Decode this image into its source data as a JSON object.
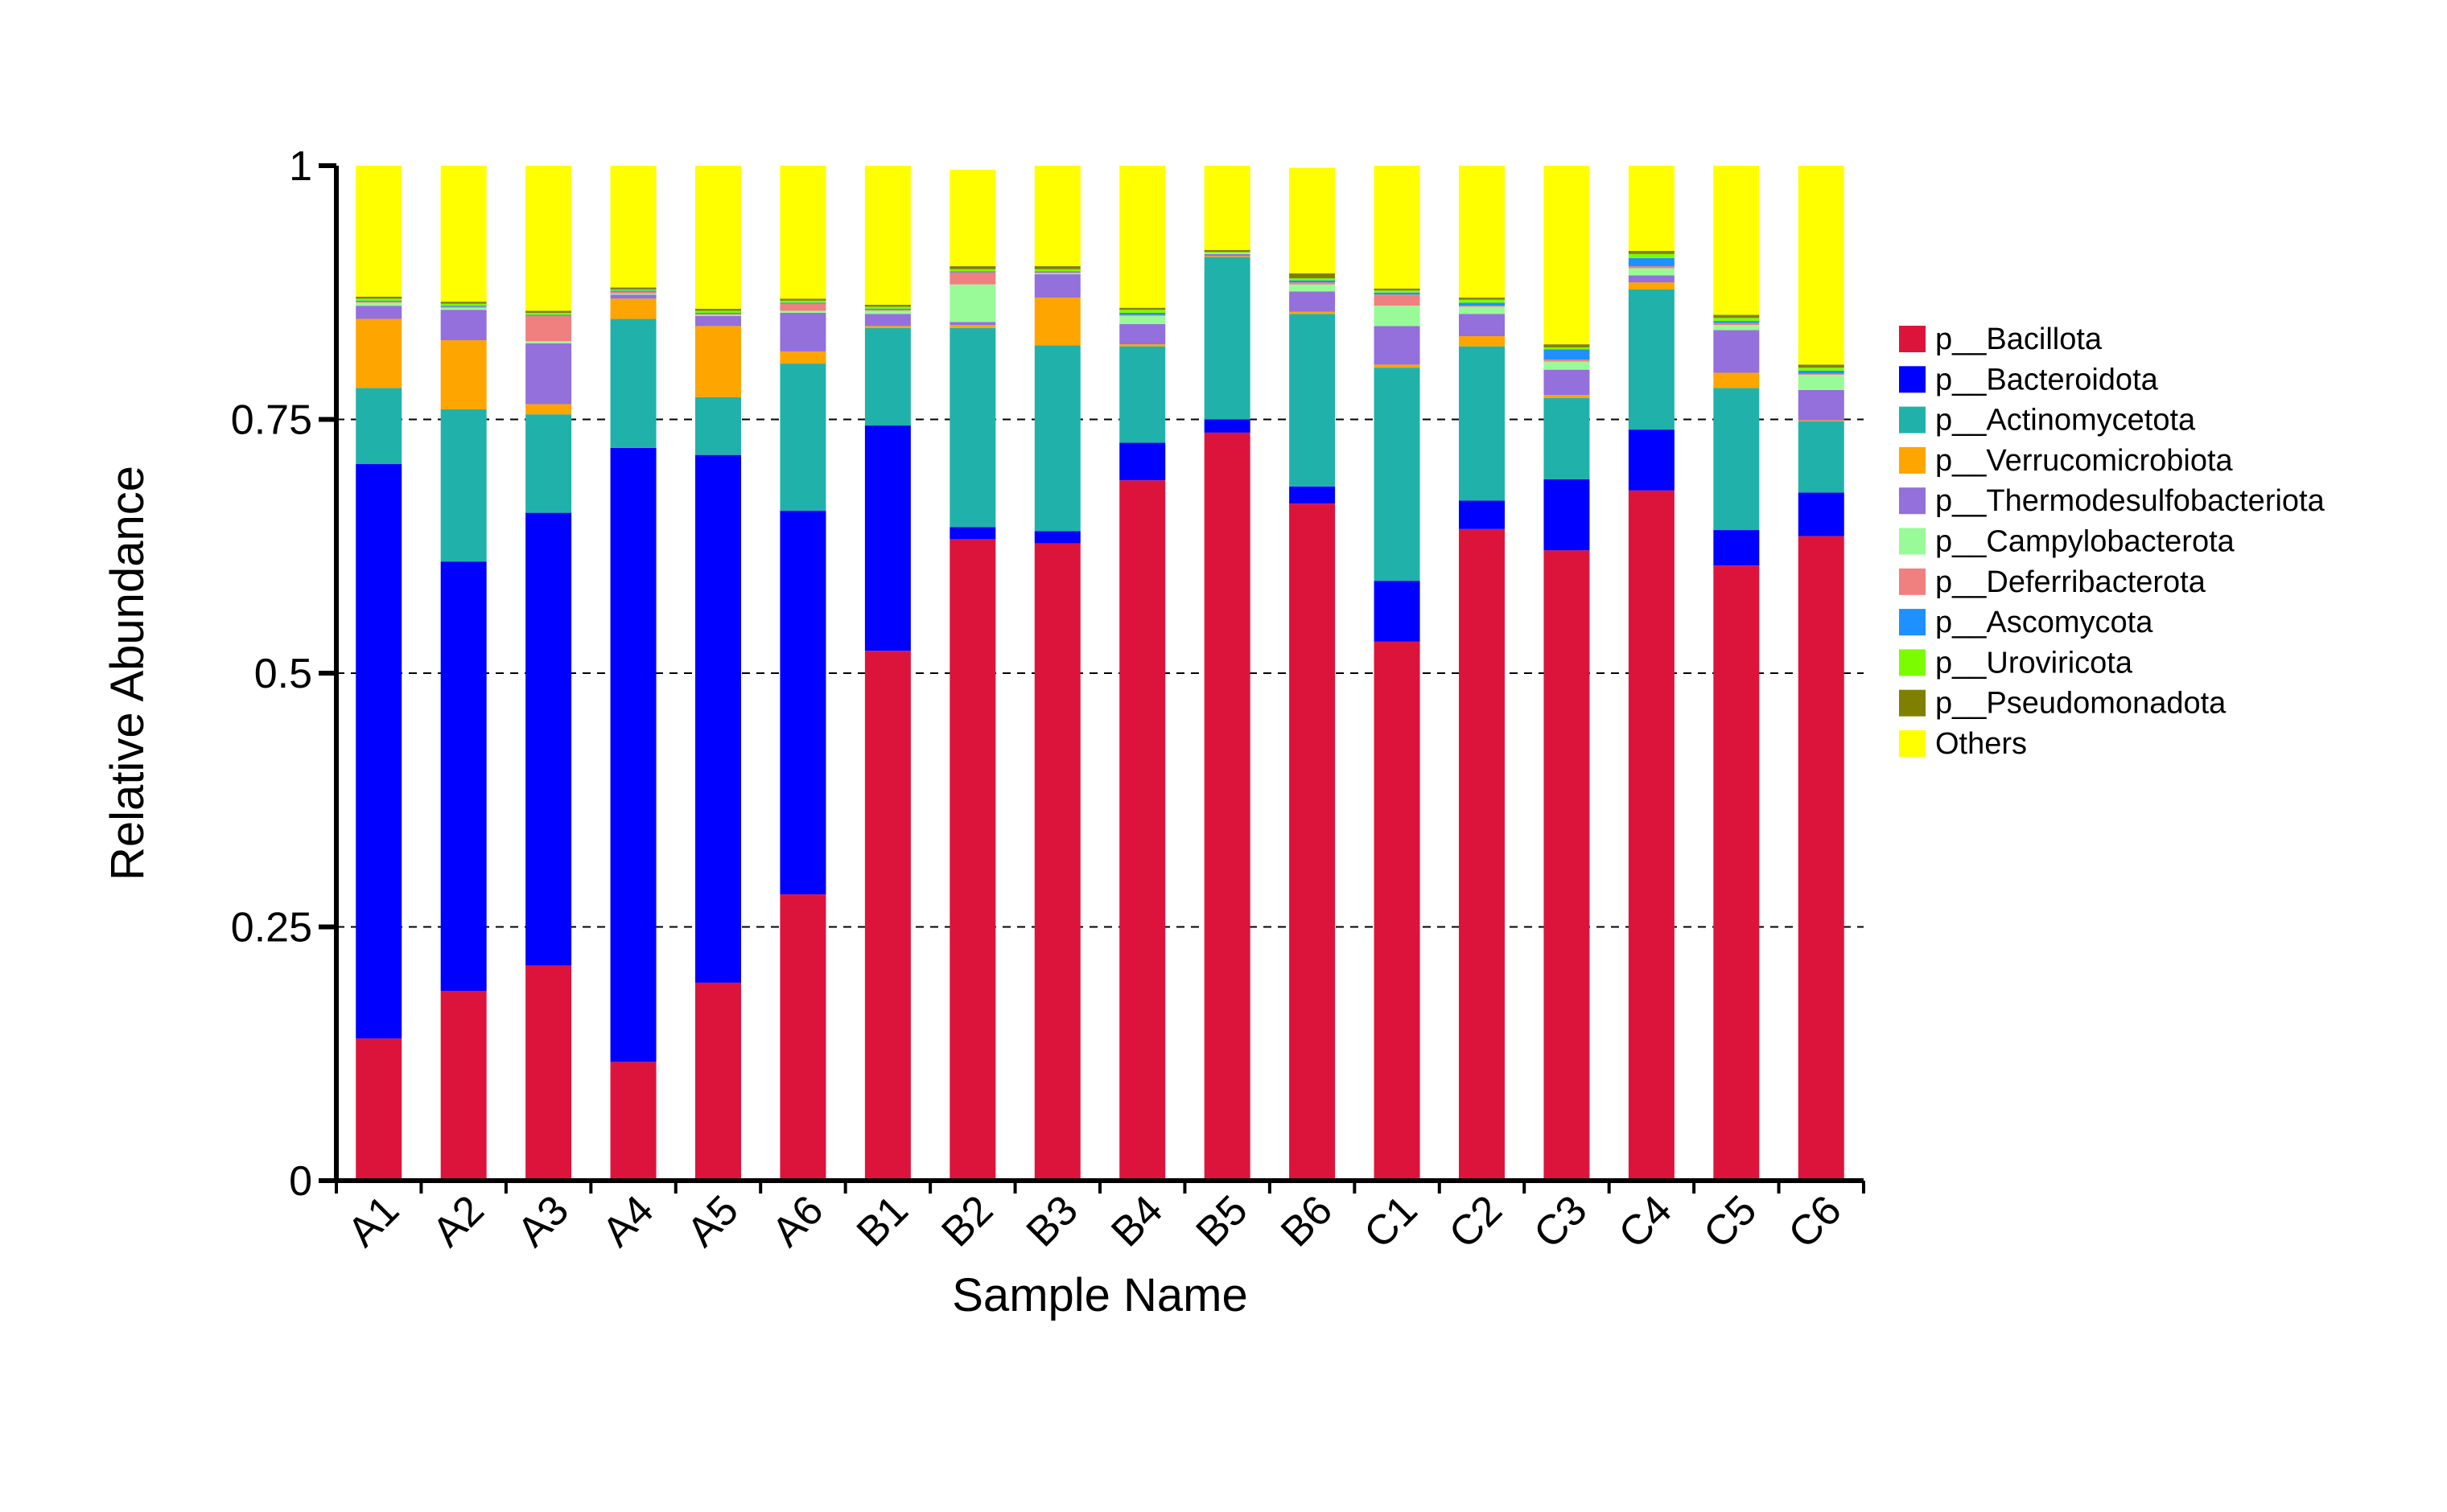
{
  "chart_data": {
    "type": "bar",
    "stacked": true,
    "xlabel": "Sample Name",
    "ylabel": "Relative Abundance",
    "ylim": [
      0,
      1
    ],
    "yticks": [
      0,
      0.25,
      0.5,
      0.75,
      1
    ],
    "ytick_labels": [
      "0",
      "0.25",
      "0.5",
      "0.75",
      "1"
    ],
    "grid": "dashed horizontal lines at 0.25, 0.5, 0.75",
    "legend_position": "right",
    "categories": [
      "A1",
      "A2",
      "A3",
      "A4",
      "A5",
      "A6",
      "B1",
      "B2",
      "B3",
      "B4",
      "B5",
      "B6",
      "C1",
      "C2",
      "C3",
      "C4",
      "C5",
      "C6"
    ],
    "series": [
      {
        "name": "p__Bacillota",
        "color": "#DC143C",
        "values": [
          0.14,
          0.187,
          0.212,
          0.117,
          0.195,
          0.282,
          0.522,
          0.632,
          0.628,
          0.69,
          0.737,
          0.667,
          0.531,
          0.642,
          0.621,
          0.68,
          0.606,
          0.635
        ]
      },
      {
        "name": "p__Bacteroidota",
        "color": "#0000FF",
        "values": [
          0.566,
          0.423,
          0.446,
          0.605,
          0.52,
          0.378,
          0.222,
          0.012,
          0.012,
          0.037,
          0.013,
          0.017,
          0.06,
          0.028,
          0.07,
          0.06,
          0.035,
          0.043
        ]
      },
      {
        "name": "p__Actinomycetota",
        "color": "#20B2AA",
        "values": [
          0.075,
          0.15,
          0.097,
          0.127,
          0.057,
          0.145,
          0.096,
          0.196,
          0.183,
          0.095,
          0.16,
          0.17,
          0.21,
          0.152,
          0.08,
          0.138,
          0.14,
          0.07
        ]
      },
      {
        "name": "p__Verrucomicrobiota",
        "color": "#FFA500",
        "values": [
          0.068,
          0.068,
          0.01,
          0.02,
          0.07,
          0.012,
          0.002,
          0.003,
          0.047,
          0.002,
          0.001,
          0.002,
          0.003,
          0.01,
          0.003,
          0.007,
          0.015,
          0.001
        ]
      },
      {
        "name": "p__Thermodesulfobacteriota",
        "color": "#9370DB",
        "values": [
          0.013,
          0.03,
          0.06,
          0.004,
          0.01,
          0.038,
          0.012,
          0.003,
          0.023,
          0.02,
          0.002,
          0.02,
          0.038,
          0.022,
          0.025,
          0.007,
          0.042,
          0.03
        ]
      },
      {
        "name": "p__Campylobacterota",
        "color": "#98FB98",
        "values": [
          0.003,
          0.002,
          0.002,
          0.001,
          0.001,
          0.002,
          0.003,
          0.037,
          0.001,
          0.008,
          0.001,
          0.007,
          0.02,
          0.007,
          0.008,
          0.007,
          0.005,
          0.015
        ]
      },
      {
        "name": "p__Deferribacterota",
        "color": "#F08080",
        "values": [
          0.001,
          0.001,
          0.025,
          0.002,
          0.001,
          0.007,
          0.001,
          0.012,
          0.001,
          0.001,
          0.0,
          0.002,
          0.011,
          0.001,
          0.002,
          0.002,
          0.002,
          0.001
        ]
      },
      {
        "name": "p__Ascomycota",
        "color": "#1E90FF",
        "values": [
          0.001,
          0.001,
          0.001,
          0.001,
          0.001,
          0.001,
          0.001,
          0.001,
          0.001,
          0.002,
          0.0,
          0.002,
          0.002,
          0.003,
          0.01,
          0.008,
          0.002,
          0.003
        ]
      },
      {
        "name": "p__Uroviricota",
        "color": "#7CFC00",
        "values": [
          0.002,
          0.002,
          0.002,
          0.001,
          0.002,
          0.002,
          0.002,
          0.002,
          0.002,
          0.003,
          0.001,
          0.002,
          0.002,
          0.003,
          0.002,
          0.004,
          0.003,
          0.003
        ]
      },
      {
        "name": "p__Pseudomonadota",
        "color": "#808000",
        "values": [
          0.002,
          0.002,
          0.002,
          0.002,
          0.002,
          0.002,
          0.002,
          0.003,
          0.003,
          0.002,
          0.002,
          0.005,
          0.002,
          0.002,
          0.003,
          0.003,
          0.003,
          0.003
        ]
      },
      {
        "name": "Others",
        "color": "#FFFF00",
        "values": [
          0.129,
          0.134,
          0.143,
          0.12,
          0.141,
          0.131,
          0.137,
          0.095,
          0.099,
          0.14,
          0.083,
          0.104,
          0.121,
          0.13,
          0.176,
          0.084,
          0.147,
          0.196
        ]
      }
    ]
  }
}
